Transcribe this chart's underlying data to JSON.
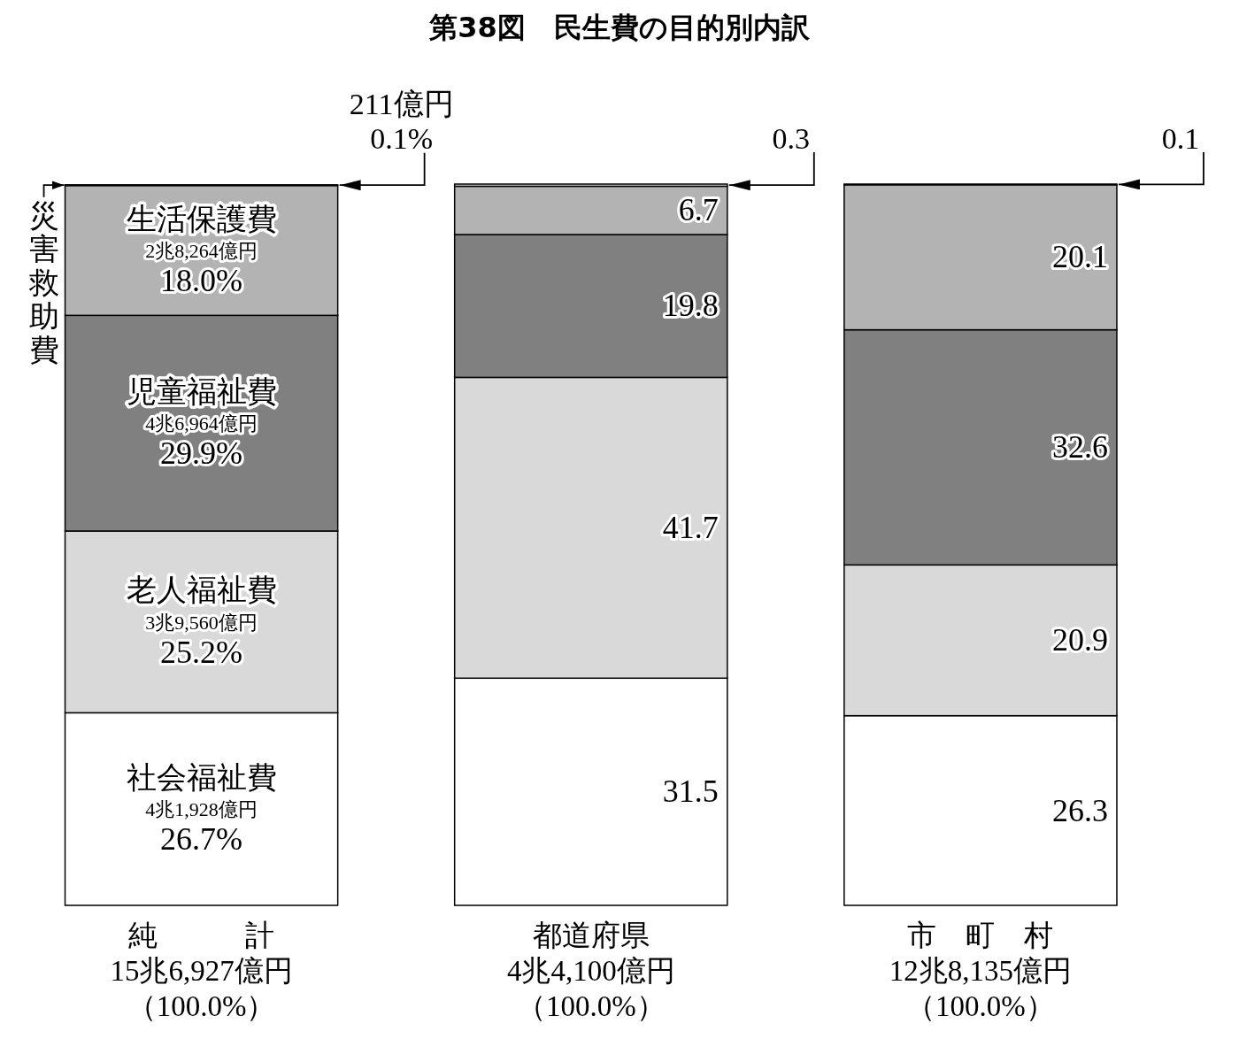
{
  "chart_data": {
    "type": "bar",
    "stacked": true,
    "title": "第38図　民生費の目的別内訳",
    "categories": [
      "純　　　計",
      "都道府県",
      "市　町　村"
    ],
    "totals": [
      "15兆6,927億円（100.0%）",
      "4兆4,100億円（100.0%）",
      "12兆8,135億円（100.0%）"
    ],
    "series": [
      {
        "name": "社会福祉費",
        "color": "#ffffff",
        "values": [
          26.7,
          31.5,
          26.3
        ],
        "value_labels": [
          "4兆1,928億円\n26.7%",
          "31.5",
          "26.3"
        ]
      },
      {
        "name": "老人福祉費",
        "color": "#d9d9d9",
        "values": [
          25.2,
          41.7,
          20.9
        ],
        "value_labels": [
          "3兆9,560億円\n25.2%",
          "41.7",
          "20.9"
        ]
      },
      {
        "name": "児童福祉費",
        "color": "#808080",
        "values": [
          29.9,
          19.8,
          32.6
        ],
        "value_labels": [
          "4兆6,964億円\n29.9%",
          "19.8",
          "32.6"
        ]
      },
      {
        "name": "生活保護費",
        "color": "#b3b3b3",
        "values": [
          18.0,
          6.7,
          20.1
        ],
        "value_labels": [
          "2兆8,264億円\n18.0%",
          "6.7",
          "20.1"
        ]
      },
      {
        "name": "災害救助費",
        "color": "#e6e6e6",
        "values": [
          0.1,
          0.3,
          0.1
        ],
        "value_labels": [
          "211億円\n0.1%",
          "0.3",
          "0.1"
        ]
      }
    ]
  }
}
